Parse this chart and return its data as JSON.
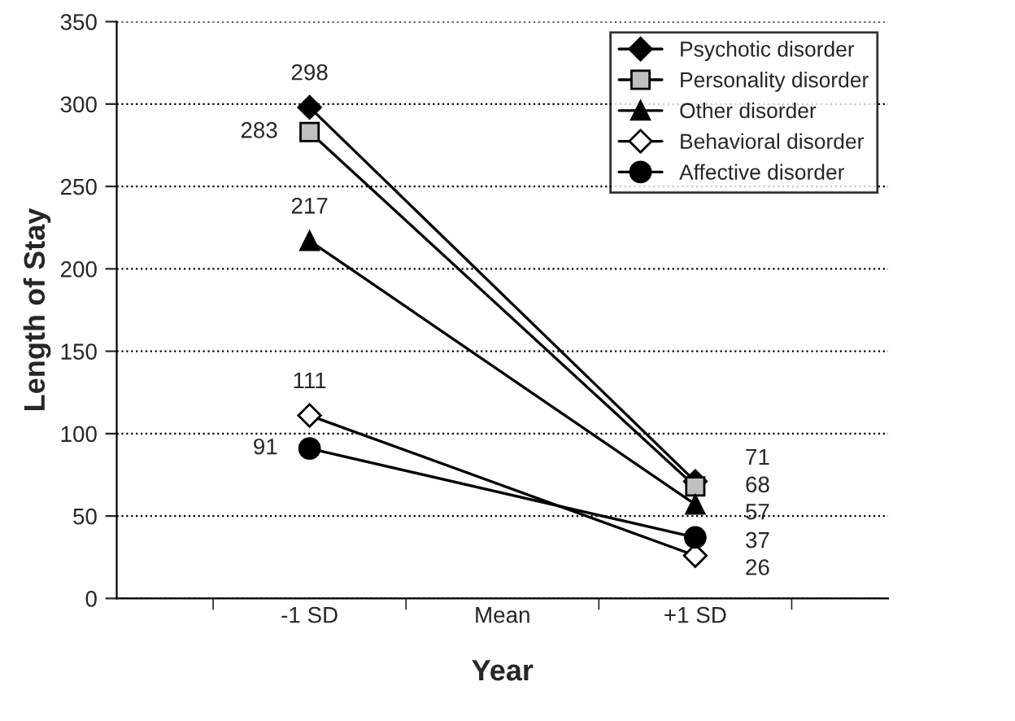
{
  "chart_data": {
    "type": "line",
    "xlabel": "Year",
    "ylabel": "Length of Stay",
    "x": [
      -1,
      1
    ],
    "series": [
      {
        "name": "Psychotic disorder",
        "color": "#000000",
        "marker": "diamond",
        "values": [
          298,
          71
        ]
      },
      {
        "name": "Personality disorder",
        "color": "#c0c0c0",
        "marker": "square",
        "values": [
          283,
          68
        ]
      },
      {
        "name": "Other disorder",
        "color": "#000000",
        "marker": "triangle",
        "values": [
          217,
          57
        ]
      },
      {
        "name": "Behavioral disorder",
        "color": "#ffffff",
        "marker": "diamond",
        "values": [
          111,
          26
        ]
      },
      {
        "name": "Affective disorder",
        "color": "#000000",
        "marker": "circle",
        "values": [
          91,
          37
        ]
      }
    ],
    "xlim": [
      -2,
      2
    ],
    "xticks": [
      {
        "value": -1,
        "label": "-1 SD"
      },
      {
        "value": 0,
        "label": "Mean"
      },
      {
        "value": 1,
        "label": "+1 SD"
      }
    ],
    "ylim": [
      0,
      350
    ],
    "yticks": [
      0,
      50,
      100,
      150,
      200,
      250,
      300,
      350
    ],
    "grid": "y",
    "legend": "top right",
    "data_labels": true
  }
}
